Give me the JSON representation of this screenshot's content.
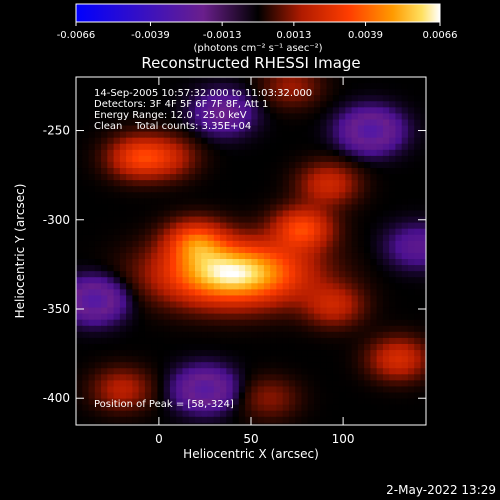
{
  "chart_data": {
    "type": "heatmap",
    "title": "Reconstructed RHESSI Image",
    "xlabel": "Heliocentric X (arcsec)",
    "ylabel": "Heliocentric Y (arcsec)",
    "xlim": [
      -45,
      145
    ],
    "ylim": [
      -415,
      -220
    ],
    "x_ticks": [
      0,
      50,
      100
    ],
    "y_ticks": [
      -250,
      -300,
      -350,
      -400
    ],
    "colorbar": {
      "label": "(photons cm⁻² s⁻¹ asec⁻²)",
      "range": [
        -0.0066,
        0.0066
      ],
      "ticks": [
        "-0.0066",
        "-0.0039",
        "-0.0013",
        "0.0013",
        "0.0039",
        "0.0066"
      ]
    },
    "annotations": [
      "14-Sep-2005 10:57:32.000 to 11:03:32.000",
      "Detectors: 3F 4F 5F 6F 7F 8F, Att 1",
      "Energy Range: 12.0 - 25.0 keV",
      "Clean    Total counts: 3.35E+04"
    ],
    "peak_label": "Position of Peak = [58,-324]",
    "peak": [
      58,
      -324
    ],
    "colormap": [
      "#0000ff",
      "#6a1f8c",
      "#4a1090",
      "#000000",
      "#b01b00",
      "#ff3d00",
      "#ff9a00",
      "#ffe060",
      "#ffffff"
    ],
    "sources": [
      {
        "x": 40,
        "y": -330,
        "amp": 0.0066
      },
      {
        "x": 20,
        "y": -312,
        "amp": 0.0032
      },
      {
        "x": 78,
        "y": -305,
        "amp": 0.0033
      },
      {
        "x": 92,
        "y": -280,
        "amp": 0.0022
      },
      {
        "x": 95,
        "y": -348,
        "amp": 0.002
      },
      {
        "x": -12,
        "y": -265,
        "amp": 0.0028
      },
      {
        "x": 5,
        "y": -265,
        "amp": 0.0018
      },
      {
        "x": -20,
        "y": -395,
        "amp": 0.0018
      },
      {
        "x": 130,
        "y": -378,
        "amp": 0.0024
      },
      {
        "x": 60,
        "y": -400,
        "amp": 0.0012
      },
      {
        "x": 72,
        "y": -225,
        "amp": 0.0014
      },
      {
        "x": -35,
        "y": -345,
        "amp": -0.003
      },
      {
        "x": 25,
        "y": -395,
        "amp": -0.0028
      },
      {
        "x": 115,
        "y": -250,
        "amp": -0.003
      },
      {
        "x": 35,
        "y": -240,
        "amp": -0.002
      },
      {
        "x": 140,
        "y": -315,
        "amp": -0.0015
      }
    ]
  },
  "footer": {
    "timestamp": "2-May-2022 13:29"
  }
}
